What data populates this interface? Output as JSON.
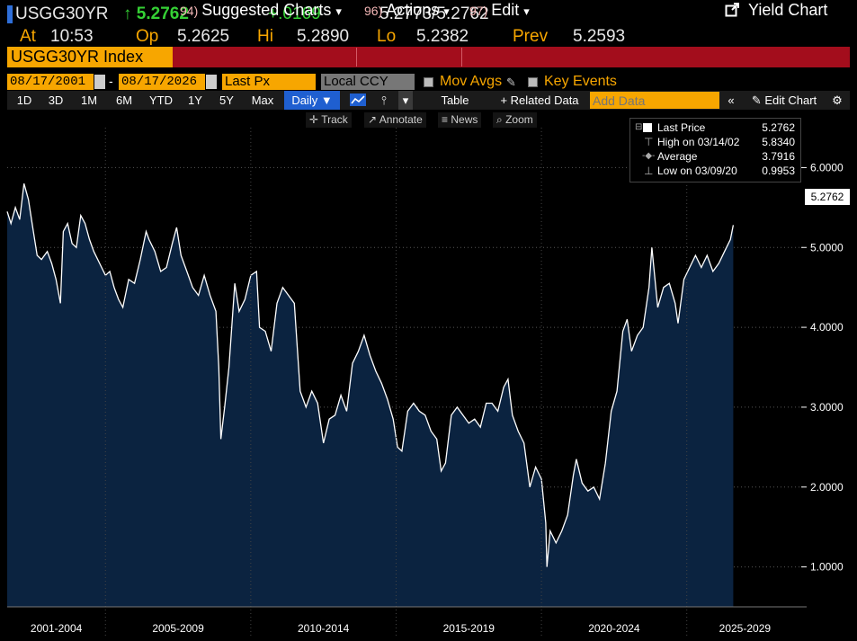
{
  "header": {
    "ticker": "USGG30YR",
    "arrow": "↑",
    "last": "5.2762",
    "change": "+.0169",
    "bid": "5.2773",
    "separator": "/",
    "ask": "5.2762",
    "at_label": "At",
    "time": "10:53",
    "open_label": "Op",
    "open": "5.2625",
    "high_label": "Hi",
    "high": "5.2890",
    "low_label": "Lo",
    "low": "5.2382",
    "prev_label": "Prev",
    "prev": "5.2593"
  },
  "cmdbar": {
    "security": "USGG30YR Index",
    "suggested_num": "94)",
    "suggested_label": "Suggested Charts",
    "actions_num": "96)",
    "actions_label": "Actions",
    "edit_num": "97)",
    "edit_label": "Edit",
    "dropdown": "▾",
    "yield_chart": "Yield Chart"
  },
  "controls": {
    "start_date": "08/17/2001",
    "dash": "-",
    "end_date": "08/17/2026",
    "field": "Last Px",
    "currency": "Local CCY",
    "mov_avgs": "Mov Avgs",
    "key_events": "Key Events"
  },
  "tabs": {
    "ranges": [
      "1D",
      "3D",
      "1M",
      "6M",
      "YTD",
      "1Y",
      "5Y",
      "Max"
    ],
    "period": "Daily ▼",
    "table": "Table",
    "related": "+ Related Data",
    "add_data_placeholder": "Add Data",
    "edit_chart": "Edit Chart"
  },
  "subtools": {
    "track": "Track",
    "annotate": "Annotate",
    "news": "News",
    "zoom": "Zoom"
  },
  "legend": {
    "last_price_label": "Last Price",
    "last_price": "5.2762",
    "high_label": "High on 03/14/02",
    "high": "5.8340",
    "average_label": "Average",
    "average": "3.7916",
    "low_label": "Low on 03/09/20",
    "low": "0.9953"
  },
  "last_badge": "5.2762",
  "colors": {
    "accent": "#f7a600",
    "command_bar": "#a30d1c",
    "positive": "#35d035",
    "area_fill": "#0b2340",
    "line": "#ffffff"
  },
  "chart_data": {
    "type": "area",
    "series_name": "USGG30YR Index Last Px",
    "ylim": [
      0.5,
      6.5
    ],
    "yticks": [
      1.0,
      2.0,
      3.0,
      4.0,
      5.0,
      6.0
    ],
    "ytick_labels": [
      "1.0000",
      "2.0000",
      "3.0000",
      "4.0000",
      "5.0000",
      "6.0000"
    ],
    "xlim": [
      2001.62,
      2029.0
    ],
    "x_groups": [
      {
        "label": "2001-2004",
        "from": 2001.62,
        "to": 2005.0
      },
      {
        "label": "2005-2009",
        "from": 2005.0,
        "to": 2010.0
      },
      {
        "label": "2010-2014",
        "from": 2010.0,
        "to": 2015.0
      },
      {
        "label": "2015-2019",
        "from": 2015.0,
        "to": 2020.0
      },
      {
        "label": "2020-2024",
        "from": 2020.0,
        "to": 2025.0
      },
      {
        "label": "2025-2029",
        "from": 2025.0,
        "to": 2029.0
      }
    ],
    "x": [
      2001.62,
      2001.75,
      2001.9,
      2002.05,
      2002.2,
      2002.35,
      2002.5,
      2002.65,
      2002.8,
      2003.0,
      2003.15,
      2003.3,
      2003.45,
      2003.55,
      2003.7,
      2003.85,
      2004.0,
      2004.15,
      2004.3,
      2004.45,
      2004.6,
      2004.8,
      2005.0,
      2005.15,
      2005.3,
      2005.45,
      2005.6,
      2005.8,
      2006.0,
      2006.2,
      2006.4,
      2006.5,
      2006.7,
      2006.9,
      2007.1,
      2007.3,
      2007.45,
      2007.6,
      2007.8,
      2008.0,
      2008.2,
      2008.4,
      2008.6,
      2008.8,
      2008.9,
      2008.97,
      2009.1,
      2009.25,
      2009.45,
      2009.6,
      2009.8,
      2010.0,
      2010.2,
      2010.3,
      2010.5,
      2010.7,
      2010.9,
      2011.1,
      2011.3,
      2011.5,
      2011.7,
      2011.9,
      2012.1,
      2012.3,
      2012.5,
      2012.7,
      2012.9,
      2013.1,
      2013.3,
      2013.5,
      2013.7,
      2013.9,
      2014.1,
      2014.3,
      2014.5,
      2014.7,
      2014.9,
      2015.05,
      2015.2,
      2015.4,
      2015.6,
      2015.8,
      2016.0,
      2016.2,
      2016.4,
      2016.55,
      2016.7,
      2016.9,
      2017.1,
      2017.3,
      2017.5,
      2017.7,
      2017.9,
      2018.1,
      2018.3,
      2018.5,
      2018.7,
      2018.85,
      2019.0,
      2019.2,
      2019.4,
      2019.6,
      2019.8,
      2020.0,
      2020.15,
      2020.19,
      2020.3,
      2020.5,
      2020.7,
      2020.9,
      2021.1,
      2021.2,
      2021.4,
      2021.6,
      2021.8,
      2022.0,
      2022.2,
      2022.4,
      2022.6,
      2022.8,
      2022.95,
      2023.1,
      2023.3,
      2023.5,
      2023.7,
      2023.8,
      2024.0,
      2024.2,
      2024.4,
      2024.6,
      2024.7,
      2024.9,
      2025.1,
      2025.3,
      2025.5,
      2025.7,
      2025.9,
      2026.1,
      2026.3,
      2026.5,
      2026.6
    ],
    "y": [
      5.45,
      5.3,
      5.5,
      5.35,
      5.8,
      5.6,
      5.25,
      4.9,
      4.85,
      4.95,
      4.8,
      4.6,
      4.3,
      5.2,
      5.3,
      5.05,
      5.0,
      5.4,
      5.3,
      5.1,
      4.95,
      4.8,
      4.65,
      4.7,
      4.5,
      4.35,
      4.25,
      4.6,
      4.55,
      4.85,
      5.2,
      5.1,
      4.95,
      4.7,
      4.75,
      5.05,
      5.25,
      4.9,
      4.7,
      4.5,
      4.4,
      4.65,
      4.4,
      4.2,
      3.5,
      2.6,
      3.0,
      3.5,
      4.55,
      4.2,
      4.35,
      4.65,
      4.7,
      4.0,
      3.95,
      3.7,
      4.3,
      4.5,
      4.4,
      4.3,
      3.2,
      3.0,
      3.2,
      3.05,
      2.55,
      2.85,
      2.9,
      3.15,
      2.95,
      3.55,
      3.7,
      3.9,
      3.65,
      3.45,
      3.3,
      3.1,
      2.85,
      2.5,
      2.45,
      2.95,
      3.05,
      2.95,
      2.9,
      2.7,
      2.6,
      2.2,
      2.3,
      2.9,
      3.0,
      2.9,
      2.8,
      2.85,
      2.75,
      3.05,
      3.05,
      2.95,
      3.25,
      3.35,
      2.9,
      2.7,
      2.55,
      2.0,
      2.25,
      2.1,
      1.55,
      1.0,
      1.45,
      1.3,
      1.45,
      1.65,
      2.15,
      2.35,
      2.05,
      1.95,
      2.0,
      1.85,
      2.3,
      2.95,
      3.2,
      3.95,
      4.1,
      3.7,
      3.9,
      4.0,
      4.5,
      5.0,
      4.25,
      4.5,
      4.55,
      4.3,
      4.05,
      4.6,
      4.75,
      4.9,
      4.75,
      4.9,
      4.7,
      4.8,
      4.95,
      5.1,
      5.28
    ]
  }
}
